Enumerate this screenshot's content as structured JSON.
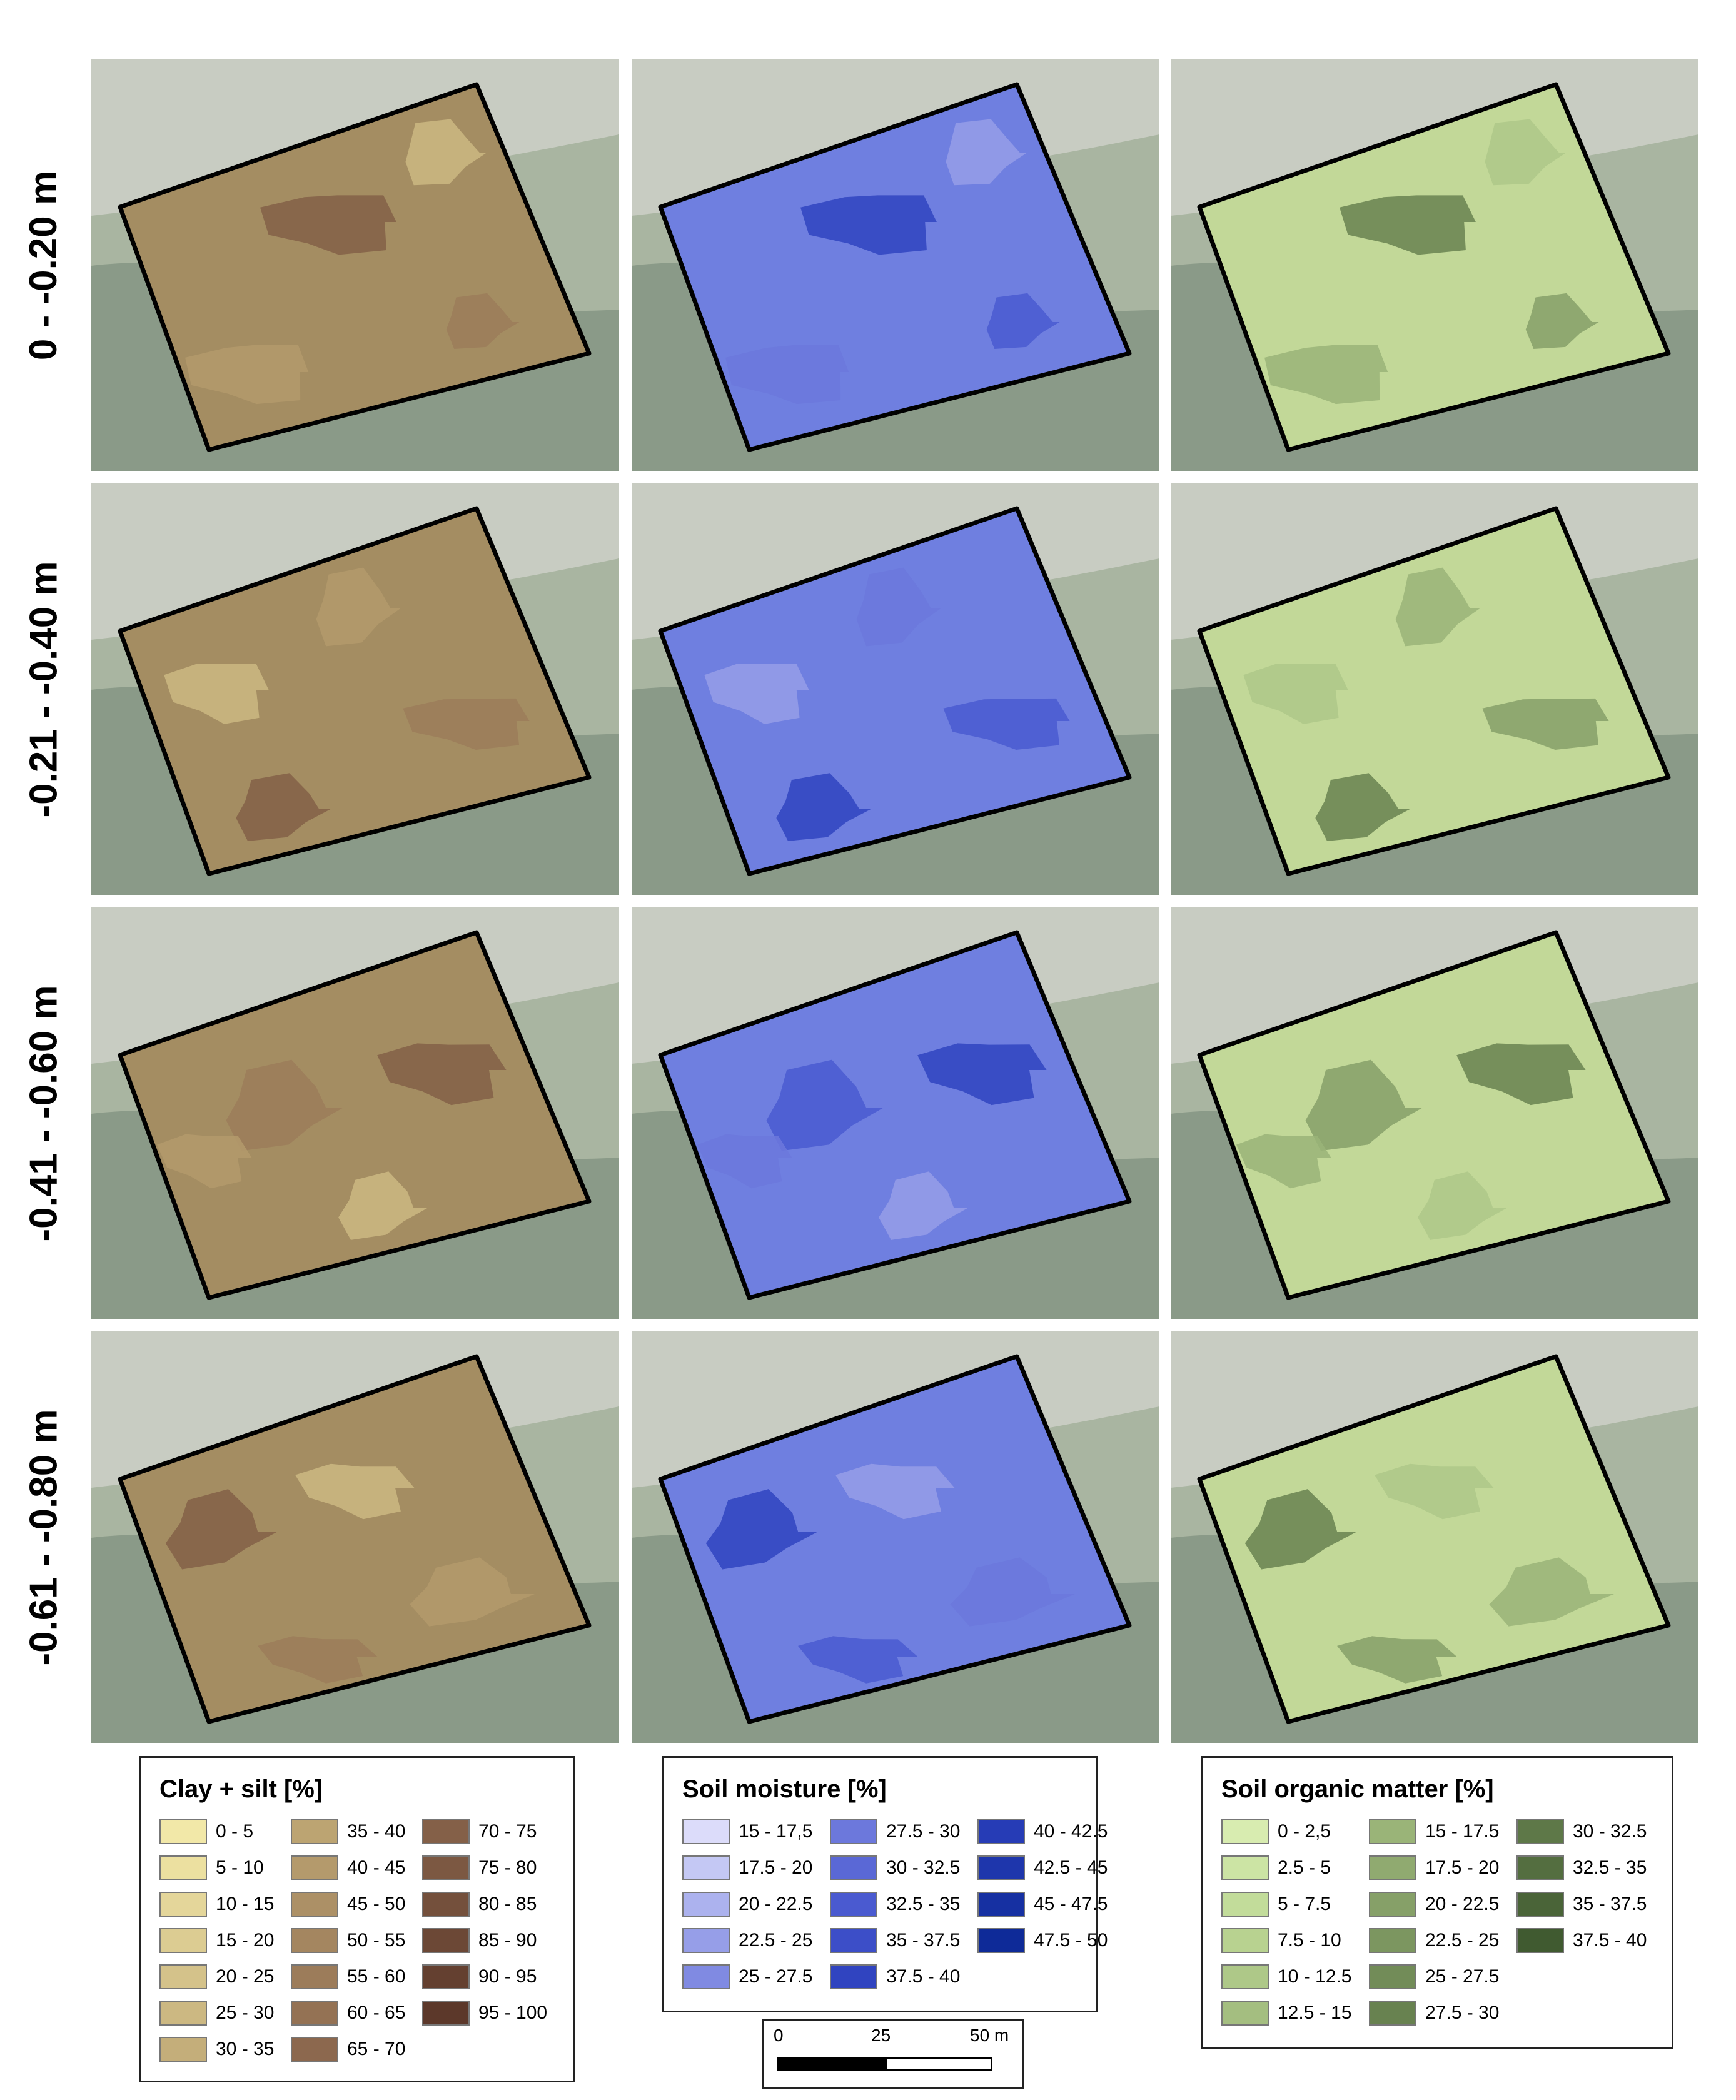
{
  "rows": [
    {
      "label": "0 - -0.20 m"
    },
    {
      "label": "-0.21 - -0.40 m"
    },
    {
      "label": "-0.41 - -0.60 m"
    },
    {
      "label": "-0.61 - -0.80 m"
    }
  ],
  "columns": [
    {
      "variable": "clay-silt",
      "base_color": "#a48d62"
    },
    {
      "variable": "soil-moisture",
      "base_color": "#6f7fe0"
    },
    {
      "variable": "soil-organic-matter",
      "base_color": "#c2d898"
    }
  ],
  "legends": [
    {
      "title": "Clay + silt [%]",
      "items": [
        {
          "label": "0 - 5",
          "color": "#f2e8a8"
        },
        {
          "label": "5 - 10",
          "color": "#ece0a0"
        },
        {
          "label": "10 - 15",
          "color": "#e4d69a"
        },
        {
          "label": "15 - 20",
          "color": "#dccc92"
        },
        {
          "label": "20 - 25",
          "color": "#d4c28a"
        },
        {
          "label": "25 - 30",
          "color": "#ccb882"
        },
        {
          "label": "30 - 35",
          "color": "#c4ae7a"
        },
        {
          "label": "35 - 40",
          "color": "#bca472"
        },
        {
          "label": "40 - 45",
          "color": "#b49a6c"
        },
        {
          "label": "45 - 50",
          "color": "#ac9066"
        },
        {
          "label": "50 - 55",
          "color": "#a48660"
        },
        {
          "label": "55 - 60",
          "color": "#9c7c5a"
        },
        {
          "label": "60 - 65",
          "color": "#947254"
        },
        {
          "label": "65 - 70",
          "color": "#8c684e"
        },
        {
          "label": "70 - 75",
          "color": "#846048"
        },
        {
          "label": "75 - 80",
          "color": "#7c5842"
        },
        {
          "label": "80 - 85",
          "color": "#74503c"
        },
        {
          "label": "85 - 90",
          "color": "#6c4836"
        },
        {
          "label": "90 - 95",
          "color": "#644030"
        },
        {
          "label": "95 - 100",
          "color": "#5c382a"
        }
      ]
    },
    {
      "title": "Soil moisture [%]",
      "items": [
        {
          "label": "15 - 17,5",
          "color": "#dcdcfa"
        },
        {
          "label": "17.5 - 20",
          "color": "#c4c8f4"
        },
        {
          "label": "20 - 22.5",
          "color": "#acb2ee"
        },
        {
          "label": "22.5 - 25",
          "color": "#969ee8"
        },
        {
          "label": "25 - 27.5",
          "color": "#808ae2"
        },
        {
          "label": "27.5 - 30",
          "color": "#6c78dc"
        },
        {
          "label": "30 - 32.5",
          "color": "#5a68d6"
        },
        {
          "label": "32.5 - 35",
          "color": "#4a5ad0"
        },
        {
          "label": "35 - 37.5",
          "color": "#3c4ec8"
        },
        {
          "label": "37.5 - 40",
          "color": "#3044c0"
        },
        {
          "label": "40 - 42.5",
          "color": "#263cb6"
        },
        {
          "label": "42.5 - 45",
          "color": "#1e36ac"
        },
        {
          "label": "45 - 47.5",
          "color": "#1630a2"
        },
        {
          "label": "47.5 - 50",
          "color": "#0e2a98"
        }
      ]
    },
    {
      "title": "Soil organic matter [%]",
      "items": [
        {
          "label": "0 - 2,5",
          "color": "#d8ecb0"
        },
        {
          "label": "2.5 - 5",
          "color": "#cce4a4"
        },
        {
          "label": "5 - 7.5",
          "color": "#c2dc9a"
        },
        {
          "label": "7.5 - 10",
          "color": "#b8d290"
        },
        {
          "label": "10 - 12.5",
          "color": "#aec888"
        },
        {
          "label": "12.5 - 15",
          "color": "#a4be80"
        },
        {
          "label": "15 - 17.5",
          "color": "#9ab478"
        },
        {
          "label": "17.5 - 20",
          "color": "#90aa70"
        },
        {
          "label": "20 - 22.5",
          "color": "#86a068"
        },
        {
          "label": "22.5 - 25",
          "color": "#7c9660"
        },
        {
          "label": "25 - 27.5",
          "color": "#728c58"
        },
        {
          "label": "27.5 - 30",
          "color": "#688250"
        },
        {
          "label": "30 - 32.5",
          "color": "#5e7848"
        },
        {
          "label": "32.5 - 35",
          "color": "#546e40"
        },
        {
          "label": "35 - 37.5",
          "color": "#4a6438"
        },
        {
          "label": "37.5 - 40",
          "color": "#405a30"
        }
      ]
    }
  ],
  "scale": {
    "ticks": [
      "0",
      "25",
      "50 m"
    ]
  }
}
